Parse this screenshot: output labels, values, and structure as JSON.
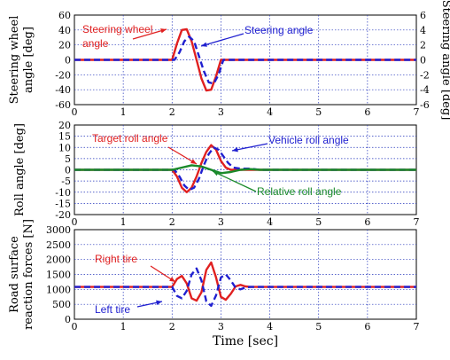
{
  "chart_data": [
    {
      "type": "line",
      "panel": "steering",
      "xlim": [
        0,
        7
      ],
      "ylim": [
        -60,
        60
      ],
      "y2lim": [
        -6,
        6
      ],
      "grid": true,
      "xticks": [
        "0",
        "1",
        "2",
        "3",
        "4",
        "5",
        "6",
        "7"
      ],
      "yticks": [
        "60",
        "40",
        "20",
        "0",
        "-20",
        "-40",
        "-60"
      ],
      "y2ticks": [
        "6",
        "4",
        "2",
        "0",
        "-2",
        "-4",
        "-6"
      ],
      "ylabel_lines": [
        "Steering wheel",
        "angle [deg]"
      ],
      "y2label": "Steering angle [deg]",
      "series": [
        {
          "name": "Steering wheel angle",
          "color": "#e02020",
          "axis": "left",
          "x": [
            0,
            2.0,
            2.1,
            2.2,
            2.3,
            2.4,
            2.5,
            2.6,
            2.7,
            2.8,
            2.9,
            3.0,
            3.1,
            7
          ],
          "y": [
            0,
            0,
            22,
            40,
            41,
            25,
            0,
            -25,
            -41,
            -40,
            -22,
            0,
            0,
            0
          ]
        },
        {
          "name": "Steering angle",
          "color": "#2020d0",
          "axis": "right",
          "dashed": true,
          "x": [
            0,
            2.05,
            2.15,
            2.25,
            2.35,
            2.45,
            2.55,
            2.65,
            2.75,
            2.85,
            2.95,
            3.05,
            3.15,
            7
          ],
          "y": [
            0,
            0,
            1.0,
            2.5,
            3.1,
            2.5,
            0.5,
            -1.5,
            -3.0,
            -3.2,
            -2.0,
            0,
            0,
            0
          ]
        }
      ],
      "annotations": [
        {
          "text": "Steering wheel",
          "color": "#e02020"
        },
        {
          "text": "angle",
          "color": "#e02020"
        },
        {
          "text": "Steering angle",
          "color": "#2020d0"
        }
      ]
    },
    {
      "type": "line",
      "panel": "roll",
      "xlim": [
        0,
        7
      ],
      "ylim": [
        -20,
        20
      ],
      "grid": true,
      "xticks": [
        "0",
        "1",
        "2",
        "3",
        "4",
        "5",
        "6",
        "7"
      ],
      "yticks": [
        "20",
        "15",
        "10",
        "5",
        "0",
        "-5",
        "-10",
        "-15",
        "-20"
      ],
      "ylabel_lines": [
        "Roll angle [deg]"
      ],
      "series": [
        {
          "name": "Target roll angle",
          "color": "#e02020",
          "x": [
            0,
            2.0,
            2.1,
            2.2,
            2.3,
            2.4,
            2.5,
            2.6,
            2.7,
            2.8,
            2.9,
            3.0,
            3.1,
            3.2,
            3.3,
            7
          ],
          "y": [
            0,
            0,
            -3,
            -8,
            -10,
            -8,
            -3,
            3,
            8,
            11,
            9,
            4,
            1,
            0,
            0,
            0
          ]
        },
        {
          "name": "Vehicle roll angle",
          "color": "#2020d0",
          "dashed": true,
          "x": [
            0,
            2.05,
            2.15,
            2.25,
            2.35,
            2.45,
            2.55,
            2.65,
            2.75,
            2.85,
            2.95,
            3.05,
            3.15,
            3.25,
            3.4,
            3.6,
            3.8,
            7
          ],
          "y": [
            0,
            0,
            -3,
            -7,
            -9,
            -8,
            -4,
            2,
            7,
            10,
            9,
            6,
            3,
            1,
            0.5,
            0.5,
            0,
            0
          ]
        },
        {
          "name": "Relative roll angle",
          "color": "#1a8a2a",
          "x": [
            0,
            2.0,
            2.2,
            2.4,
            2.6,
            2.8,
            3.0,
            3.2,
            3.4,
            3.6,
            3.8,
            7
          ],
          "y": [
            0,
            0,
            1,
            2,
            1.5,
            0,
            -1.5,
            -1,
            0,
            0.3,
            0,
            0
          ]
        }
      ],
      "annotations": [
        {
          "text": "Target roll angle",
          "color": "#e02020"
        },
        {
          "text": "Vehicle roll angle",
          "color": "#2020d0"
        },
        {
          "text": "Relative roll angle",
          "color": "#1a8a2a"
        }
      ]
    },
    {
      "type": "line",
      "panel": "force",
      "xlim": [
        0,
        7
      ],
      "ylim": [
        0,
        3000
      ],
      "grid": true,
      "xticks": [
        "0",
        "1",
        "2",
        "3",
        "4",
        "5",
        "6",
        "7"
      ],
      "yticks": [
        "3000",
        "2500",
        "2000",
        "1500",
        "1000",
        "500",
        "0"
      ],
      "ylabel_lines": [
        "Road surface",
        "reaction forces [N]"
      ],
      "xlabel": "Time [sec]",
      "series": [
        {
          "name": "Right tire",
          "color": "#e02020",
          "x": [
            0,
            2.0,
            2.1,
            2.2,
            2.3,
            2.4,
            2.5,
            2.6,
            2.7,
            2.8,
            2.9,
            3.0,
            3.1,
            3.2,
            3.3,
            3.4,
            3.5,
            3.6,
            7
          ],
          "y": [
            1080,
            1080,
            1350,
            1450,
            1200,
            700,
            620,
            900,
            1650,
            1900,
            1400,
            750,
            650,
            850,
            1100,
            1150,
            1100,
            1080,
            1080
          ]
        },
        {
          "name": "Left tire",
          "color": "#2020d0",
          "dashed": true,
          "x": [
            0,
            2.0,
            2.1,
            2.2,
            2.3,
            2.4,
            2.5,
            2.6,
            2.7,
            2.8,
            2.9,
            3.0,
            3.1,
            3.2,
            3.3,
            3.4,
            3.5,
            3.6,
            7
          ],
          "y": [
            1080,
            1080,
            780,
            700,
            950,
            1500,
            1700,
            1300,
            600,
            450,
            800,
            1400,
            1500,
            1300,
            1050,
            1000,
            1060,
            1080,
            1080
          ]
        }
      ],
      "annotations": [
        {
          "text": "Right tire",
          "color": "#e02020"
        },
        {
          "text": "Left tire",
          "color": "#2020d0"
        }
      ]
    }
  ]
}
